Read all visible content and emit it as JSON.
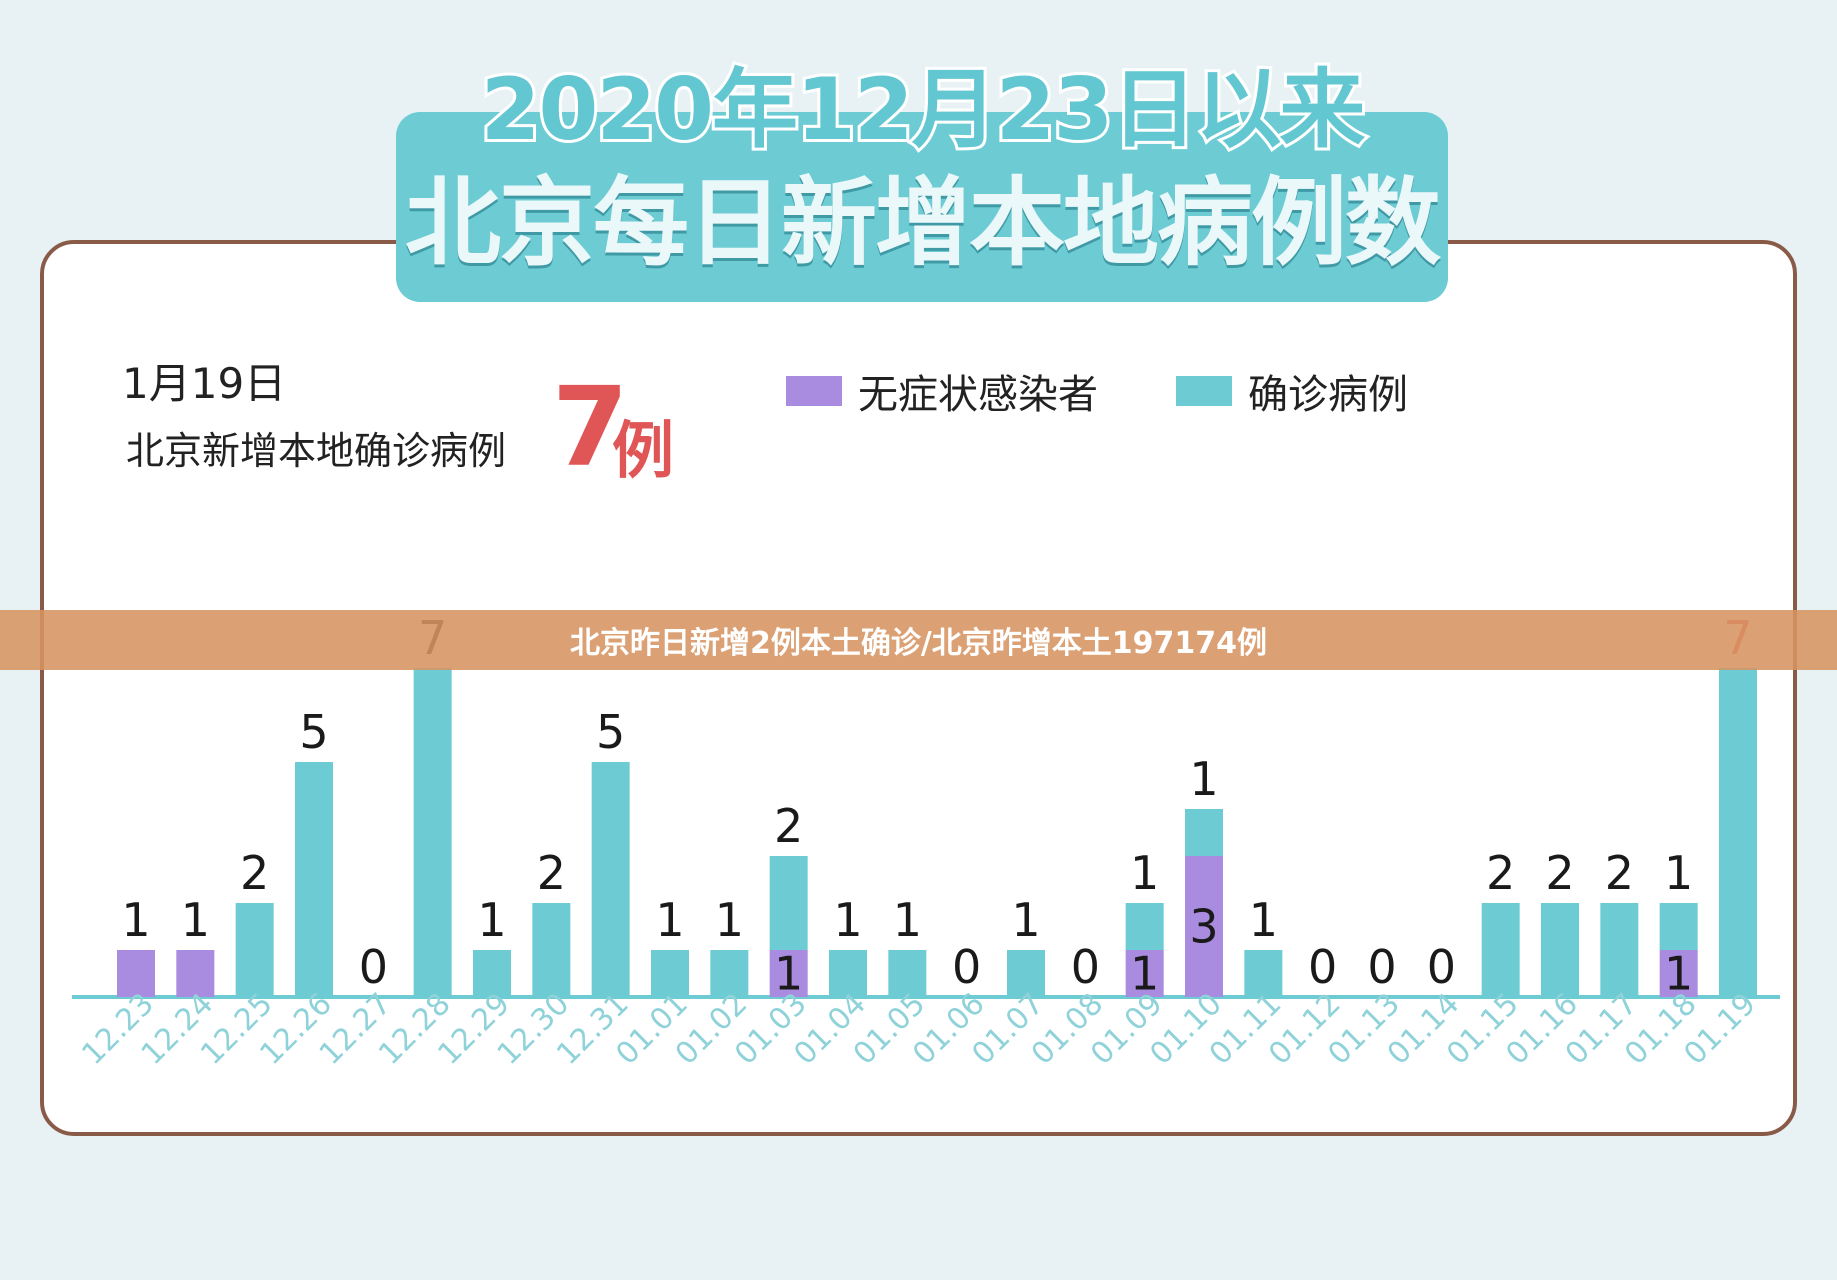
{
  "title": {
    "line1": "2020年12月23日以来",
    "line2": "北京每日新增本地病例数"
  },
  "summary": {
    "date": "1月19日",
    "label": "北京新增本地确诊病例",
    "value": "7",
    "unit": "例"
  },
  "legend": [
    {
      "label": "无症状感染者",
      "color": "#a98be0"
    },
    {
      "label": "确诊病例",
      "color": "#6ccbd3"
    }
  ],
  "banner": "北京昨日新增2例本土确诊/北京昨增本土197174例",
  "colors": {
    "confirmed": "#6ccbd3",
    "asymptomatic": "#a98be0",
    "axis": "#6ccbd3",
    "tick_text": "#8fd2d9",
    "highlight": "#e05656"
  },
  "chart_data": {
    "type": "bar",
    "stacked": true,
    "categories": [
      "12.23",
      "12.24",
      "12.25",
      "12.26",
      "12.27",
      "12.28",
      "12.29",
      "12.30",
      "12.31",
      "01.01",
      "01.02",
      "01.03",
      "01.04",
      "01.05",
      "01.06",
      "01.07",
      "01.08",
      "01.09",
      "01.10",
      "01.11",
      "01.12",
      "01.13",
      "01.14",
      "01.15",
      "01.16",
      "01.17",
      "01.18",
      "01.19"
    ],
    "series": [
      {
        "name": "无症状感染者",
        "values": [
          1,
          1,
          0,
          0,
          0,
          0,
          0,
          0,
          0,
          0,
          0,
          1,
          0,
          0,
          0,
          0,
          0,
          1,
          3,
          0,
          0,
          0,
          0,
          0,
          0,
          0,
          1,
          0
        ]
      },
      {
        "name": "确诊病例",
        "values": [
          0,
          0,
          2,
          5,
          0,
          7,
          1,
          2,
          5,
          1,
          1,
          2,
          1,
          1,
          0,
          1,
          0,
          1,
          1,
          1,
          0,
          0,
          0,
          2,
          2,
          2,
          1,
          7
        ]
      }
    ],
    "ylim": [
      0,
      7
    ],
    "xlabel": "",
    "ylabel": ""
  }
}
